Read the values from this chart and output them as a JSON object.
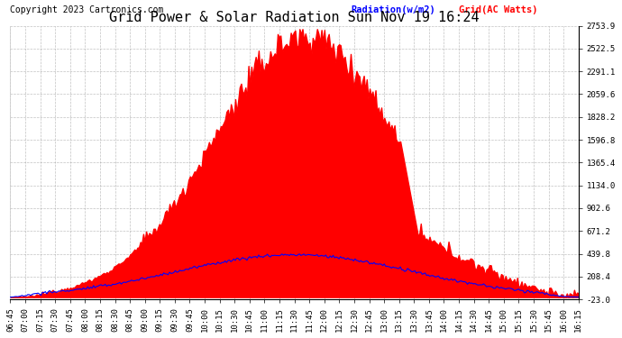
{
  "title": "Grid Power & Solar Radiation Sun Nov 19 16:24",
  "copyright": "Copyright 2023 Cartronics.com",
  "legend_radiation": "Radiation(w/m2)",
  "legend_grid": "Grid(AC Watts)",
  "legend_radiation_color": "blue",
  "legend_grid_color": "red",
  "yticks": [
    2753.9,
    2522.5,
    2291.1,
    2059.6,
    1828.2,
    1596.8,
    1365.4,
    1134.0,
    902.6,
    671.2,
    439.8,
    208.4,
    -23.0
  ],
  "ymin": -23.0,
  "ymax": 2753.9,
  "background_color": "#ffffff",
  "fill_color": "#ff0000",
  "line_color": "blue",
  "grid_color": "#999999",
  "title_fontsize": 11,
  "copyright_fontsize": 7,
  "tick_fontsize": 6.5,
  "xtick_labels": [
    "06:45",
    "07:00",
    "07:15",
    "07:30",
    "07:45",
    "08:00",
    "08:15",
    "08:30",
    "08:45",
    "09:00",
    "09:15",
    "09:30",
    "09:45",
    "10:00",
    "10:15",
    "10:30",
    "10:45",
    "11:00",
    "11:15",
    "11:30",
    "11:45",
    "12:00",
    "12:15",
    "12:30",
    "12:45",
    "13:00",
    "13:15",
    "13:30",
    "13:45",
    "14:00",
    "14:15",
    "14:30",
    "14:45",
    "15:00",
    "15:15",
    "15:30",
    "15:45",
    "16:00",
    "16:15"
  ]
}
